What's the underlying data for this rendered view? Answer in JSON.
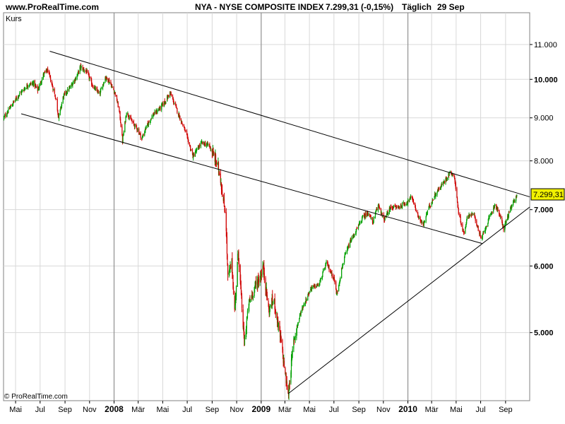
{
  "header": {
    "site": "www.ProRealTime.com",
    "title": "NYA - NYSE COMPOSITE INDEX",
    "quote": "7.299,31 (-0,15%)",
    "period": "Täglich",
    "date": "29 Sep"
  },
  "panel_label": "Kurs",
  "copyright": "© ProRealTime.com",
  "last_price_label": "7.299,31",
  "colors": {
    "up": "#00a000",
    "down": "#d00000",
    "grid": "#d8d8d8",
    "year_line": "#909090",
    "trend": "#000000",
    "price_box": "#f0f000"
  },
  "chart_data": {
    "type": "candlestick",
    "title": "NYA - NYSE COMPOSITE INDEX",
    "scale": "log",
    "ylim": [
      4150,
      12000
    ],
    "y_ticks": [
      {
        "value": 5000,
        "label": "5.000",
        "bold": true
      },
      {
        "value": 6000,
        "label": "6.000",
        "bold": true
      },
      {
        "value": 7000,
        "label": "7.000",
        "bold": true
      },
      {
        "value": 8000,
        "label": "8.000",
        "bold": false
      },
      {
        "value": 9000,
        "label": "9.000",
        "bold": false
      },
      {
        "value": 10000,
        "label": "10.000",
        "bold": true
      },
      {
        "value": 11000,
        "label": "11.000",
        "bold": false
      }
    ],
    "xlim": [
      "2007-04-01",
      "2010-10-31"
    ],
    "x_ticks": [
      {
        "date": "2007-05-01",
        "label": "Mai",
        "year": false
      },
      {
        "date": "2007-07-01",
        "label": "Jul",
        "year": false
      },
      {
        "date": "2007-09-01",
        "label": "Sep",
        "year": false
      },
      {
        "date": "2007-11-01",
        "label": "Nov",
        "year": false
      },
      {
        "date": "2008-01-01",
        "label": "2008",
        "year": true
      },
      {
        "date": "2008-03-01",
        "label": "Mär",
        "year": false
      },
      {
        "date": "2008-05-01",
        "label": "Mai",
        "year": false
      },
      {
        "date": "2008-07-01",
        "label": "Jul",
        "year": false
      },
      {
        "date": "2008-09-01",
        "label": "Sep",
        "year": false
      },
      {
        "date": "2008-11-01",
        "label": "Nov",
        "year": false
      },
      {
        "date": "2009-01-01",
        "label": "2009",
        "year": true
      },
      {
        "date": "2009-03-01",
        "label": "Mär",
        "year": false
      },
      {
        "date": "2009-05-01",
        "label": "Mai",
        "year": false
      },
      {
        "date": "2009-07-01",
        "label": "Jul",
        "year": false
      },
      {
        "date": "2009-09-01",
        "label": "Sep",
        "year": false
      },
      {
        "date": "2009-11-01",
        "label": "Nov",
        "year": false
      },
      {
        "date": "2010-01-01",
        "label": "2010",
        "year": true
      },
      {
        "date": "2010-03-01",
        "label": "Mär",
        "year": false
      },
      {
        "date": "2010-05-01",
        "label": "Mai",
        "year": false
      },
      {
        "date": "2010-07-01",
        "label": "Jul",
        "year": false
      },
      {
        "date": "2010-09-01",
        "label": "Sep",
        "year": false
      }
    ],
    "price_path": [
      [
        "2007-04-02",
        9000
      ],
      [
        "2007-04-20",
        9300
      ],
      [
        "2007-05-10",
        9600
      ],
      [
        "2007-06-01",
        9850
      ],
      [
        "2007-06-15",
        9900
      ],
      [
        "2007-06-25",
        9700
      ],
      [
        "2007-07-10",
        10150
      ],
      [
        "2007-07-20",
        10250
      ],
      [
        "2007-08-01",
        9800
      ],
      [
        "2007-08-10",
        9450
      ],
      [
        "2007-08-16",
        9000
      ],
      [
        "2007-08-28",
        9550
      ],
      [
        "2007-09-15",
        9800
      ],
      [
        "2007-10-01",
        10100
      ],
      [
        "2007-10-09",
        10350
      ],
      [
        "2007-10-25",
        10200
      ],
      [
        "2007-11-10",
        9800
      ],
      [
        "2007-11-26",
        9600
      ],
      [
        "2007-12-10",
        10050
      ],
      [
        "2007-12-20",
        9950
      ],
      [
        "2008-01-05",
        9600
      ],
      [
        "2008-01-15",
        9100
      ],
      [
        "2008-01-22",
        8450
      ],
      [
        "2008-02-01",
        9150
      ],
      [
        "2008-02-15",
        8900
      ],
      [
        "2008-03-01",
        8700
      ],
      [
        "2008-03-10",
        8500
      ],
      [
        "2008-03-20",
        8750
      ],
      [
        "2008-04-05",
        9050
      ],
      [
        "2008-04-25",
        9250
      ],
      [
        "2008-05-10",
        9450
      ],
      [
        "2008-05-19",
        9650
      ],
      [
        "2008-06-05",
        9200
      ],
      [
        "2008-06-25",
        8700
      ],
      [
        "2008-07-10",
        8250
      ],
      [
        "2008-07-15",
        8100
      ],
      [
        "2008-08-05",
        8400
      ],
      [
        "2008-08-25",
        8350
      ],
      [
        "2008-09-10",
        8000
      ],
      [
        "2008-09-20",
        7750
      ],
      [
        "2008-09-29",
        7150
      ],
      [
        "2008-10-05",
        6900
      ],
      [
        "2008-10-10",
        5800
      ],
      [
        "2008-10-20",
        6050
      ],
      [
        "2008-10-27",
        5300
      ],
      [
        "2008-11-05",
        6250
      ],
      [
        "2008-11-20",
        4850
      ],
      [
        "2008-12-01",
        5400
      ],
      [
        "2008-12-15",
        5650
      ],
      [
        "2008-12-31",
        5850
      ],
      [
        "2009-01-06",
        6000
      ],
      [
        "2009-01-20",
        5300
      ],
      [
        "2009-02-01",
        5500
      ],
      [
        "2009-02-20",
        4850
      ],
      [
        "2009-03-01",
        4500
      ],
      [
        "2009-03-09",
        4200
      ],
      [
        "2009-03-23",
        4900
      ],
      [
        "2009-04-10",
        5300
      ],
      [
        "2009-05-05",
        5650
      ],
      [
        "2009-05-25",
        5700
      ],
      [
        "2009-06-12",
        6050
      ],
      [
        "2009-07-01",
        5800
      ],
      [
        "2009-07-08",
        5550
      ],
      [
        "2009-07-25",
        6100
      ],
      [
        "2009-08-10",
        6400
      ],
      [
        "2009-08-25",
        6600
      ],
      [
        "2009-09-10",
        6850
      ],
      [
        "2009-09-25",
        6950
      ],
      [
        "2009-10-05",
        6750
      ],
      [
        "2009-10-20",
        7100
      ],
      [
        "2009-11-02",
        6800
      ],
      [
        "2009-11-20",
        7050
      ],
      [
        "2009-12-10",
        7050
      ],
      [
        "2009-12-31",
        7150
      ],
      [
        "2010-01-11",
        7250
      ],
      [
        "2010-01-25",
        6900
      ],
      [
        "2010-02-08",
        6700
      ],
      [
        "2010-02-20",
        7000
      ],
      [
        "2010-03-10",
        7300
      ],
      [
        "2010-04-01",
        7550
      ],
      [
        "2010-04-15",
        7750
      ],
      [
        "2010-04-26",
        7700
      ],
      [
        "2010-05-07",
        6950
      ],
      [
        "2010-05-20",
        6550
      ],
      [
        "2010-05-30",
        6900
      ],
      [
        "2010-06-15",
        6900
      ],
      [
        "2010-07-02",
        6450
      ],
      [
        "2010-07-15",
        6700
      ],
      [
        "2010-08-05",
        7100
      ],
      [
        "2010-08-15",
        6950
      ],
      [
        "2010-08-27",
        6650
      ],
      [
        "2010-09-10",
        6950
      ],
      [
        "2010-09-29",
        7299.31
      ]
    ],
    "trendlines": [
      {
        "name": "upper-channel",
        "from": [
          "2007-07-25",
          10800
        ],
        "to": [
          "2010-10-31",
          7250
        ]
      },
      {
        "name": "lower-channel",
        "from": [
          "2007-05-15",
          9100
        ],
        "to": [
          "2010-07-05",
          6380
        ]
      },
      {
        "name": "support-line",
        "from": [
          "2009-03-09",
          4230
        ],
        "to": [
          "2010-10-31",
          7050
        ]
      }
    ],
    "last_value": 7299.31
  }
}
